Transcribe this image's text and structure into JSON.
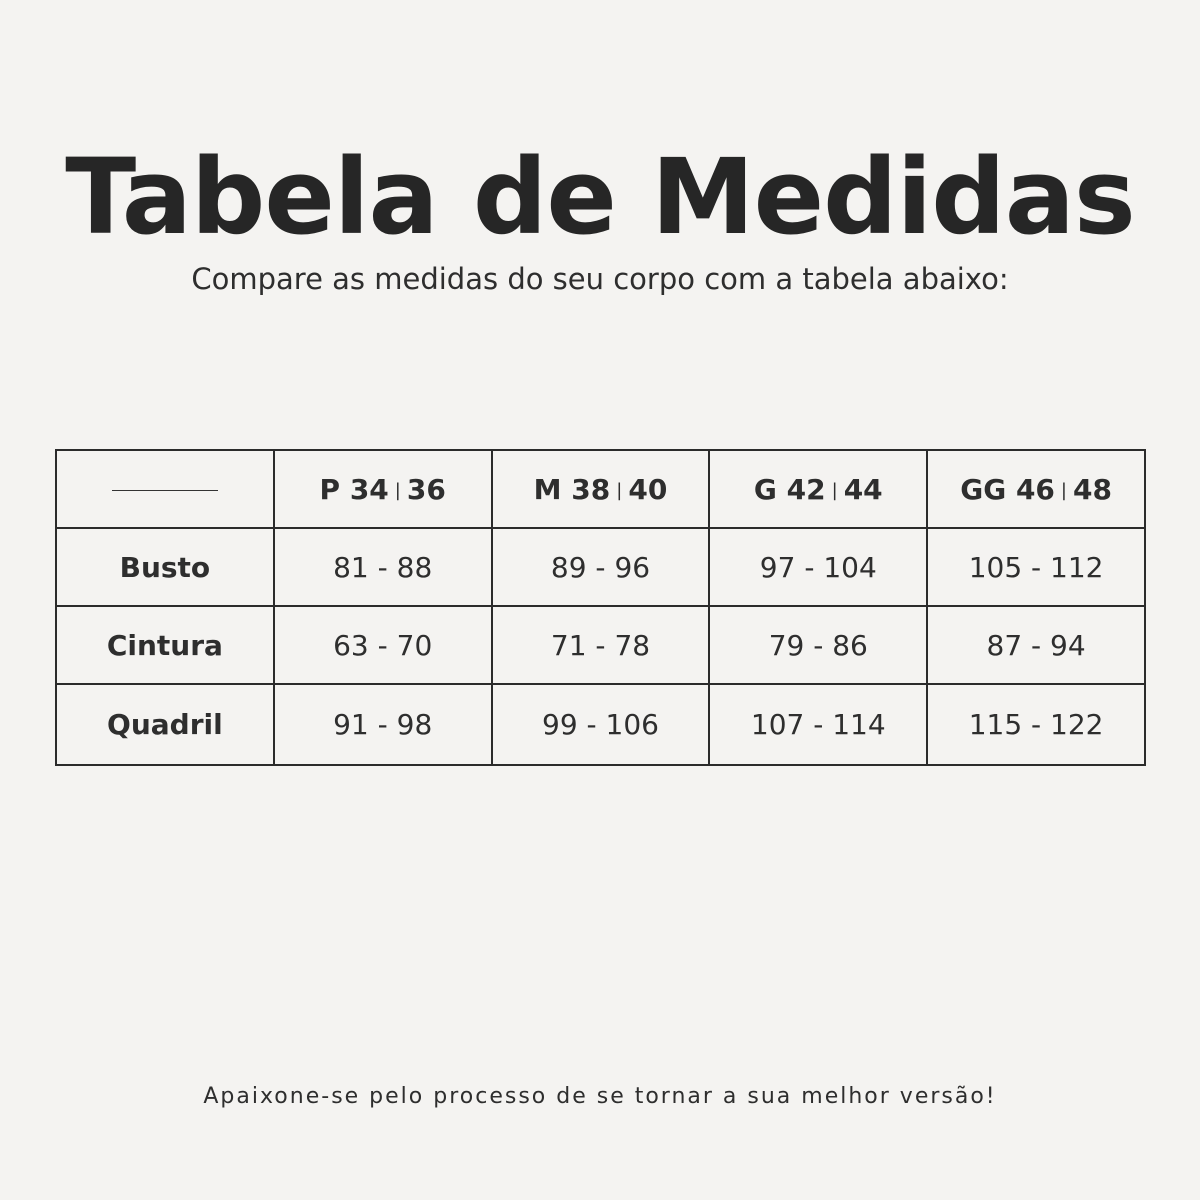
{
  "title": "Tabela de Medidas",
  "subtitle": "Compare as medidas do seu corpo com a tabela abaixo:",
  "table": {
    "headers": [
      {
        "size": "P",
        "a": "34",
        "b": "36"
      },
      {
        "size": "M",
        "a": "38",
        "b": "40"
      },
      {
        "size": "G",
        "a": "42",
        "b": "44"
      },
      {
        "size": "GG",
        "a": "46",
        "b": "48"
      }
    ],
    "rows": [
      {
        "label": "Busto",
        "values": [
          "81 - 88",
          "89 - 96",
          "97 - 104",
          "105 - 112"
        ]
      },
      {
        "label": "Cintura",
        "values": [
          "63 - 70",
          "71 - 78",
          "79 - 86",
          "87 - 94"
        ]
      },
      {
        "label": "Quadril",
        "values": [
          "91 - 98",
          "99 - 106",
          "107 - 114",
          "115 - 122"
        ]
      }
    ]
  },
  "footer": "Apaixone-se pelo processo de se tornar a sua melhor versão!"
}
